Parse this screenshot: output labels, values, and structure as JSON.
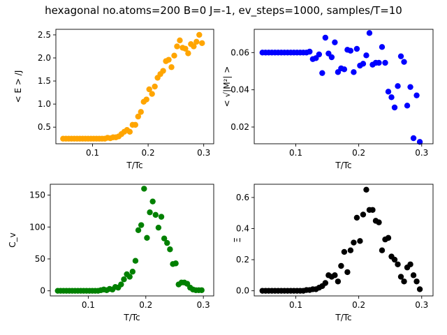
{
  "figure_title": "hexagonal no.atoms=200  B=0 J=-1, ev_steps=1000, samples/T=10",
  "chart_data": [
    {
      "type": "scatter",
      "ylabel": "< E > /J",
      "xlabel": "T/Tc",
      "color": "#ffa500",
      "xlim": [
        0.034,
        0.318
      ],
      "ylim": [
        0.14,
        2.62
      ],
      "xticks": [
        0.1,
        0.2,
        0.3
      ],
      "xtick_labels": [
        "0.1",
        "0.2",
        "0.3"
      ],
      "yticks": [
        0.5,
        1.0,
        1.5,
        2.0,
        2.5
      ],
      "ytick_labels": [
        "0.5",
        "1.0",
        "1.5",
        "2.0",
        "2.5"
      ],
      "points": [
        [
          0.047,
          0.25
        ],
        [
          0.052,
          0.25
        ],
        [
          0.057,
          0.25
        ],
        [
          0.062,
          0.25
        ],
        [
          0.067,
          0.25
        ],
        [
          0.072,
          0.25
        ],
        [
          0.077,
          0.25
        ],
        [
          0.082,
          0.25
        ],
        [
          0.087,
          0.25
        ],
        [
          0.092,
          0.25
        ],
        [
          0.097,
          0.25
        ],
        [
          0.102,
          0.25
        ],
        [
          0.107,
          0.25
        ],
        [
          0.112,
          0.25
        ],
        [
          0.117,
          0.25
        ],
        [
          0.122,
          0.25
        ],
        [
          0.127,
          0.27
        ],
        [
          0.132,
          0.26
        ],
        [
          0.137,
          0.28
        ],
        [
          0.142,
          0.28
        ],
        [
          0.147,
          0.3
        ],
        [
          0.152,
          0.35
        ],
        [
          0.157,
          0.4
        ],
        [
          0.162,
          0.44
        ],
        [
          0.167,
          0.4
        ],
        [
          0.172,
          0.55
        ],
        [
          0.177,
          0.55
        ],
        [
          0.182,
          0.73
        ],
        [
          0.187,
          0.83
        ],
        [
          0.192,
          1.05
        ],
        [
          0.197,
          1.1
        ],
        [
          0.202,
          1.32
        ],
        [
          0.207,
          1.22
        ],
        [
          0.212,
          1.38
        ],
        [
          0.217,
          1.57
        ],
        [
          0.222,
          1.65
        ],
        [
          0.227,
          1.72
        ],
        [
          0.232,
          1.93
        ],
        [
          0.237,
          1.96
        ],
        [
          0.242,
          1.8
        ],
        [
          0.247,
          2.05
        ],
        [
          0.252,
          2.25
        ],
        [
          0.257,
          2.38
        ],
        [
          0.262,
          2.22
        ],
        [
          0.267,
          2.2
        ],
        [
          0.272,
          2.1
        ],
        [
          0.277,
          2.3
        ],
        [
          0.282,
          2.25
        ],
        [
          0.287,
          2.35
        ],
        [
          0.292,
          2.5
        ],
        [
          0.297,
          2.32
        ]
      ]
    },
    {
      "type": "scatter",
      "ylabel": "< √|M²| >",
      "xlabel": "T/Tc",
      "color": "#0000ff",
      "xlim": [
        0.034,
        0.318
      ],
      "ylim": [
        0.011,
        0.0725
      ],
      "xticks": [
        0.1,
        0.2,
        0.3
      ],
      "xtick_labels": [
        "0.1",
        "0.2",
        "0.3"
      ],
      "yticks": [
        0.02,
        0.04,
        0.06
      ],
      "ytick_labels": [
        "0.02",
        "0.04",
        "0.06"
      ],
      "points": [
        [
          0.047,
          0.06
        ],
        [
          0.052,
          0.06
        ],
        [
          0.057,
          0.06
        ],
        [
          0.062,
          0.06
        ],
        [
          0.067,
          0.06
        ],
        [
          0.072,
          0.06
        ],
        [
          0.077,
          0.06
        ],
        [
          0.082,
          0.06
        ],
        [
          0.087,
          0.06
        ],
        [
          0.092,
          0.06
        ],
        [
          0.097,
          0.06
        ],
        [
          0.102,
          0.06
        ],
        [
          0.107,
          0.06
        ],
        [
          0.112,
          0.06
        ],
        [
          0.117,
          0.06
        ],
        [
          0.122,
          0.0605
        ],
        [
          0.127,
          0.0565
        ],
        [
          0.132,
          0.057
        ],
        [
          0.137,
          0.059
        ],
        [
          0.142,
          0.049
        ],
        [
          0.147,
          0.068
        ],
        [
          0.152,
          0.0595
        ],
        [
          0.157,
          0.0575
        ],
        [
          0.162,
          0.0655
        ],
        [
          0.167,
          0.0495
        ],
        [
          0.172,
          0.0515
        ],
        [
          0.177,
          0.051
        ],
        [
          0.182,
          0.0615
        ],
        [
          0.187,
          0.061
        ],
        [
          0.192,
          0.0495
        ],
        [
          0.197,
          0.062
        ],
        [
          0.202,
          0.053
        ],
        [
          0.207,
          0.054
        ],
        [
          0.212,
          0.0585
        ],
        [
          0.217,
          0.0705
        ],
        [
          0.222,
          0.0535
        ],
        [
          0.227,
          0.0545
        ],
        [
          0.232,
          0.0545
        ],
        [
          0.237,
          0.063
        ],
        [
          0.242,
          0.0545
        ],
        [
          0.247,
          0.039
        ],
        [
          0.252,
          0.036
        ],
        [
          0.257,
          0.0305
        ],
        [
          0.262,
          0.042
        ],
        [
          0.267,
          0.058
        ],
        [
          0.272,
          0.055
        ],
        [
          0.277,
          0.0315
        ],
        [
          0.282,
          0.0415
        ],
        [
          0.287,
          0.014
        ],
        [
          0.292,
          0.037
        ],
        [
          0.297,
          0.012
        ]
      ]
    },
    {
      "type": "scatter",
      "ylabel": "C_v",
      "xlabel": "T/Tc",
      "color": "#008000",
      "xlim": [
        0.034,
        0.318
      ],
      "ylim": [
        -8,
        167
      ],
      "xticks": [
        0.1,
        0.2,
        0.3
      ],
      "xtick_labels": [
        "0.1",
        "0.2",
        "0.3"
      ],
      "yticks": [
        0,
        50,
        100,
        150
      ],
      "ytick_labels": [
        "0",
        "50",
        "100",
        "150"
      ],
      "points": [
        [
          0.047,
          0
        ],
        [
          0.052,
          0
        ],
        [
          0.057,
          0
        ],
        [
          0.062,
          0
        ],
        [
          0.067,
          0
        ],
        [
          0.072,
          0
        ],
        [
          0.077,
          0
        ],
        [
          0.082,
          0
        ],
        [
          0.087,
          0
        ],
        [
          0.092,
          0
        ],
        [
          0.097,
          0
        ],
        [
          0.102,
          0
        ],
        [
          0.107,
          0
        ],
        [
          0.112,
          0
        ],
        [
          0.117,
          0
        ],
        [
          0.122,
          1
        ],
        [
          0.127,
          2
        ],
        [
          0.132,
          1
        ],
        [
          0.137,
          3
        ],
        [
          0.142,
          2
        ],
        [
          0.147,
          6
        ],
        [
          0.152,
          5
        ],
        [
          0.157,
          10
        ],
        [
          0.162,
          18
        ],
        [
          0.167,
          26
        ],
        [
          0.172,
          22
        ],
        [
          0.177,
          30
        ],
        [
          0.182,
          47
        ],
        [
          0.187,
          95
        ],
        [
          0.192,
          103
        ],
        [
          0.197,
          160
        ],
        [
          0.202,
          83
        ],
        [
          0.207,
          123
        ],
        [
          0.212,
          140
        ],
        [
          0.217,
          119
        ],
        [
          0.222,
          99
        ],
        [
          0.227,
          116
        ],
        [
          0.232,
          82
        ],
        [
          0.237,
          75
        ],
        [
          0.242,
          65
        ],
        [
          0.247,
          42
        ],
        [
          0.252,
          43
        ],
        [
          0.257,
          10
        ],
        [
          0.262,
          13
        ],
        [
          0.267,
          13
        ],
        [
          0.272,
          11
        ],
        [
          0.277,
          5
        ],
        [
          0.282,
          2
        ],
        [
          0.287,
          1
        ],
        [
          0.292,
          1
        ],
        [
          0.297,
          1
        ]
      ]
    },
    {
      "type": "scatter",
      "ylabel": "Ξ",
      "xlabel": "T/Tc",
      "color": "#000000",
      "xlim": [
        0.034,
        0.318
      ],
      "ylim": [
        -0.033,
        0.685
      ],
      "xticks": [
        0.1,
        0.2,
        0.3
      ],
      "xtick_labels": [
        "0.1",
        "0.2",
        "0.3"
      ],
      "yticks": [
        0.0,
        0.2,
        0.4,
        0.6
      ],
      "ytick_labels": [
        "0.0",
        "0.2",
        "0.4",
        "0.6"
      ],
      "points": [
        [
          0.047,
          0
        ],
        [
          0.052,
          0
        ],
        [
          0.057,
          0
        ],
        [
          0.062,
          0
        ],
        [
          0.067,
          0
        ],
        [
          0.072,
          0
        ],
        [
          0.077,
          0
        ],
        [
          0.082,
          0
        ],
        [
          0.087,
          0
        ],
        [
          0.092,
          0
        ],
        [
          0.097,
          0
        ],
        [
          0.102,
          0
        ],
        [
          0.107,
          0
        ],
        [
          0.112,
          0
        ],
        [
          0.117,
          0.005
        ],
        [
          0.122,
          0.005
        ],
        [
          0.127,
          0.01
        ],
        [
          0.132,
          0.01
        ],
        [
          0.137,
          0.02
        ],
        [
          0.142,
          0.03
        ],
        [
          0.147,
          0.05
        ],
        [
          0.152,
          0.1
        ],
        [
          0.157,
          0.09
        ],
        [
          0.162,
          0.1
        ],
        [
          0.167,
          0.06
        ],
        [
          0.172,
          0.16
        ],
        [
          0.177,
          0.25
        ],
        [
          0.182,
          0.12
        ],
        [
          0.187,
          0.26
        ],
        [
          0.192,
          0.31
        ],
        [
          0.197,
          0.47
        ],
        [
          0.202,
          0.32
        ],
        [
          0.207,
          0.49
        ],
        [
          0.212,
          0.65
        ],
        [
          0.217,
          0.52
        ],
        [
          0.222,
          0.52
        ],
        [
          0.227,
          0.45
        ],
        [
          0.232,
          0.44
        ],
        [
          0.237,
          0.26
        ],
        [
          0.242,
          0.33
        ],
        [
          0.247,
          0.34
        ],
        [
          0.252,
          0.22
        ],
        [
          0.257,
          0.2
        ],
        [
          0.262,
          0.17
        ],
        [
          0.267,
          0.09
        ],
        [
          0.272,
          0.06
        ],
        [
          0.277,
          0.15
        ],
        [
          0.282,
          0.17
        ],
        [
          0.287,
          0.1
        ],
        [
          0.292,
          0.06
        ],
        [
          0.297,
          0.01
        ]
      ]
    }
  ]
}
